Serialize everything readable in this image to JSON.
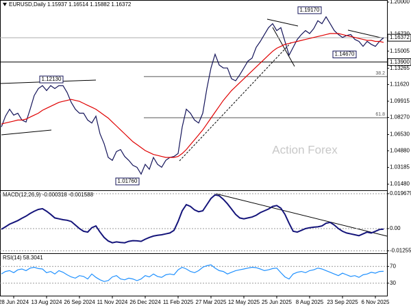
{
  "chart_data": [
    {
      "type": "line",
      "title": "EURUSD,Daily  1.15937 1.16514 1.15882 1.16372",
      "watermark": "Action Forex",
      "ylim": [
        1.0086,
        1.2021
      ],
      "yticks": [
        {
          "value": 1.2,
          "label": "1.20000"
        },
        {
          "value": 1.1672,
          "label": "1.16720"
        },
        {
          "value": 1.15005,
          "label": "1.15005"
        },
        {
          "value": 1.13265,
          "label": "1.13265"
        },
        {
          "value": 1.1162,
          "label": "1.11620"
        },
        {
          "value": 1.09915,
          "label": "1.09915"
        },
        {
          "value": 1.0827,
          "label": "1.08270"
        },
        {
          "value": 1.0653,
          "label": "1.06530"
        },
        {
          "value": 1.0488,
          "label": "1.04880"
        },
        {
          "value": 1.03185,
          "label": "1.03185"
        },
        {
          "value": 1.0148,
          "label": "1.01480"
        }
      ],
      "levels": [
        {
          "value": 1.139,
          "label": "1.13900"
        }
      ],
      "last_price": {
        "value": 1.16372,
        "label": "1.16372"
      },
      "fib_levels": [
        {
          "ratio": 38.2,
          "price": 1.1242
        },
        {
          "ratio": 61.8,
          "price": 1.0824
        }
      ],
      "annotations": [
        {
          "value": 1.1213,
          "label": "1.12130"
        },
        {
          "value": 1.0176,
          "label": "1.01760"
        },
        {
          "value": 1.1917,
          "label": "1.19170"
        },
        {
          "value": 1.1467,
          "label": "1.14670"
        }
      ],
      "series": [
        {
          "color": "#14145a",
          "values": [
            1.073,
            1.084,
            1.091,
            1.085,
            1.087,
            1.08,
            1.078,
            1.091,
            1.105,
            1.112,
            1.115,
            1.11,
            1.115,
            1.112,
            1.115,
            1.115,
            1.108,
            1.098,
            1.091,
            1.087,
            1.087,
            1.08,
            1.077,
            1.084,
            1.066,
            1.056,
            1.042,
            1.039,
            1.048,
            1.05,
            1.043,
            1.039,
            1.034,
            1.032,
            1.025,
            1.035,
            1.03,
            1.042,
            1.035,
            1.032,
            1.039,
            1.042,
            1.043,
            1.046,
            1.073,
            1.091,
            1.087,
            1.08,
            1.077,
            1.087,
            1.112,
            1.133,
            1.147,
            1.136,
            1.133,
            1.133,
            1.122,
            1.12,
            1.126,
            1.133,
            1.14,
            1.143,
            1.154,
            1.16,
            1.167,
            1.174,
            1.178,
            1.171,
            1.174,
            1.16,
            1.146,
            1.154,
            1.162,
            1.167,
            1.171,
            1.168,
            1.173,
            1.181,
            1.178,
            1.185,
            1.178,
            1.171,
            1.167,
            1.164,
            1.166,
            1.167,
            1.162,
            1.16,
            1.155,
            1.16,
            1.157,
            1.155,
            1.16,
            1.16372
          ]
        },
        {
          "color": "#e00000",
          "values": [
            1.076,
            1.077,
            1.078,
            1.079,
            1.08,
            1.08,
            1.081,
            1.083,
            1.085,
            1.087,
            1.09,
            1.092,
            1.094,
            1.096,
            1.098,
            1.099,
            1.1,
            1.101,
            1.1,
            1.099,
            1.097,
            1.095,
            1.093,
            1.091,
            1.088,
            1.085,
            1.082,
            1.078,
            1.074,
            1.07,
            1.066,
            1.062,
            1.058,
            1.055,
            1.052,
            1.049,
            1.047,
            1.045,
            1.044,
            1.043,
            1.042,
            1.042,
            1.042,
            1.043,
            1.046,
            1.05,
            1.055,
            1.06,
            1.065,
            1.07,
            1.076,
            1.082,
            1.088,
            1.094,
            1.1,
            1.105,
            1.11,
            1.114,
            1.118,
            1.122,
            1.126,
            1.13,
            1.134,
            1.138,
            1.142,
            1.146,
            1.15,
            1.153,
            1.155,
            1.157,
            1.158,
            1.159,
            1.16,
            1.161,
            1.162,
            1.163,
            1.164,
            1.165,
            1.166,
            1.167,
            1.168,
            1.168,
            1.168,
            1.167,
            1.166,
            1.165,
            1.164,
            1.163,
            1.162,
            1.161,
            1.161,
            1.16,
            1.16,
            1.159
          ]
        }
      ]
    },
    {
      "type": "line",
      "title": "MACD(12,26,9) -0.000318 -0.001588",
      "ylim": [
        -0.0139,
        0.0212
      ],
      "yticks": [
        0.019679,
        {
          "value": 0,
          "label": "0.00"
        },
        -0.012552
      ],
      "series": [
        {
          "color": "#14147a",
          "values": [
            -0.0004,
            0.001,
            0.0025,
            0.0035,
            0.0045,
            0.0058,
            0.007,
            0.0085,
            0.0098,
            0.0108,
            0.0112,
            0.0098,
            0.008,
            0.006,
            0.0055,
            0.005,
            0.0047,
            0.004,
            0.002,
            0.0,
            -0.0015,
            -0.002,
            0.0005,
            0.0015,
            -0.002,
            -0.005,
            -0.007,
            -0.008,
            -0.0075,
            -0.0078,
            -0.008,
            -0.0072,
            -0.0068,
            -0.0069,
            -0.0072,
            -0.006,
            -0.005,
            -0.0042,
            -0.0038,
            -0.0035,
            -0.003,
            -0.0025,
            -0.001,
            0.004,
            0.01,
            0.0135,
            0.0125,
            0.0105,
            0.0095,
            0.01,
            0.0135,
            0.017,
            0.019,
            0.0185,
            0.0165,
            0.014,
            0.011,
            0.008,
            0.006,
            0.0055,
            0.006,
            0.0065,
            0.0075,
            0.009,
            0.01,
            0.011,
            0.0125,
            0.013,
            0.0115,
            0.008,
            0.003,
            -0.0015,
            -0.002,
            -0.001,
            0.0,
            0.0005,
            0.0008,
            0.001,
            0.0015,
            0.003,
            0.0035,
            0.002,
            0.0,
            -0.0015,
            -0.0025,
            -0.003,
            -0.0035,
            -0.004,
            -0.003,
            -0.002,
            -0.0025,
            -0.0015,
            -0.0005,
            -0.000318
          ]
        }
      ]
    },
    {
      "type": "line",
      "title": "RSI(14) 58.3041",
      "ylim": [
        0,
        100
      ],
      "yticks": [
        70,
        30
      ],
      "categories": [
        null,
        null,
        null,
        "28 Jun 2024",
        null,
        null,
        null,
        null,
        null,
        null,
        null,
        "13 Aug 2024",
        null,
        null,
        null,
        null,
        null,
        null,
        null,
        "26 Sep 2024",
        null,
        null,
        null,
        null,
        null,
        null,
        null,
        "11 Nov 2024",
        null,
        null,
        null,
        null,
        null,
        null,
        null,
        "26 Dec 2024",
        null,
        null,
        null,
        null,
        null,
        null,
        null,
        "11 Feb 2025",
        null,
        null,
        null,
        null,
        null,
        null,
        null,
        "27 Mar 2025",
        null,
        null,
        null,
        null,
        null,
        null,
        null,
        "12 May 2025",
        null,
        null,
        null,
        null,
        null,
        null,
        null,
        "25 Jun 2025",
        null,
        null,
        null,
        null,
        null,
        null,
        null,
        "8 Aug 2025",
        null,
        null,
        null,
        null,
        null,
        null,
        null,
        "23 Sep 2025",
        null,
        null,
        null,
        null,
        null,
        null,
        null,
        "6 Nov 2025",
        null,
        null
      ],
      "series": [
        {
          "color": "#1e90ff",
          "values": [
            52,
            58,
            60,
            55,
            62,
            64,
            60,
            66,
            68,
            65,
            64,
            55,
            58,
            52,
            60,
            56,
            50,
            45,
            42,
            48,
            46,
            40,
            52,
            44,
            38,
            34,
            36,
            45,
            48,
            40,
            38,
            42,
            40,
            36,
            40,
            48,
            45,
            52,
            46,
            44,
            50,
            52,
            50,
            62,
            68,
            64,
            58,
            55,
            60,
            68,
            72,
            74,
            66,
            60,
            58,
            52,
            56,
            60,
            62,
            64,
            66,
            68,
            67,
            64,
            60,
            62,
            65,
            66,
            55,
            45,
            40,
            52,
            56,
            58,
            55,
            60,
            62,
            66,
            64,
            60,
            56,
            52,
            48,
            54,
            50,
            46,
            48,
            44,
            50,
            52,
            56,
            54,
            58,
            58.3041
          ]
        }
      ]
    }
  ]
}
